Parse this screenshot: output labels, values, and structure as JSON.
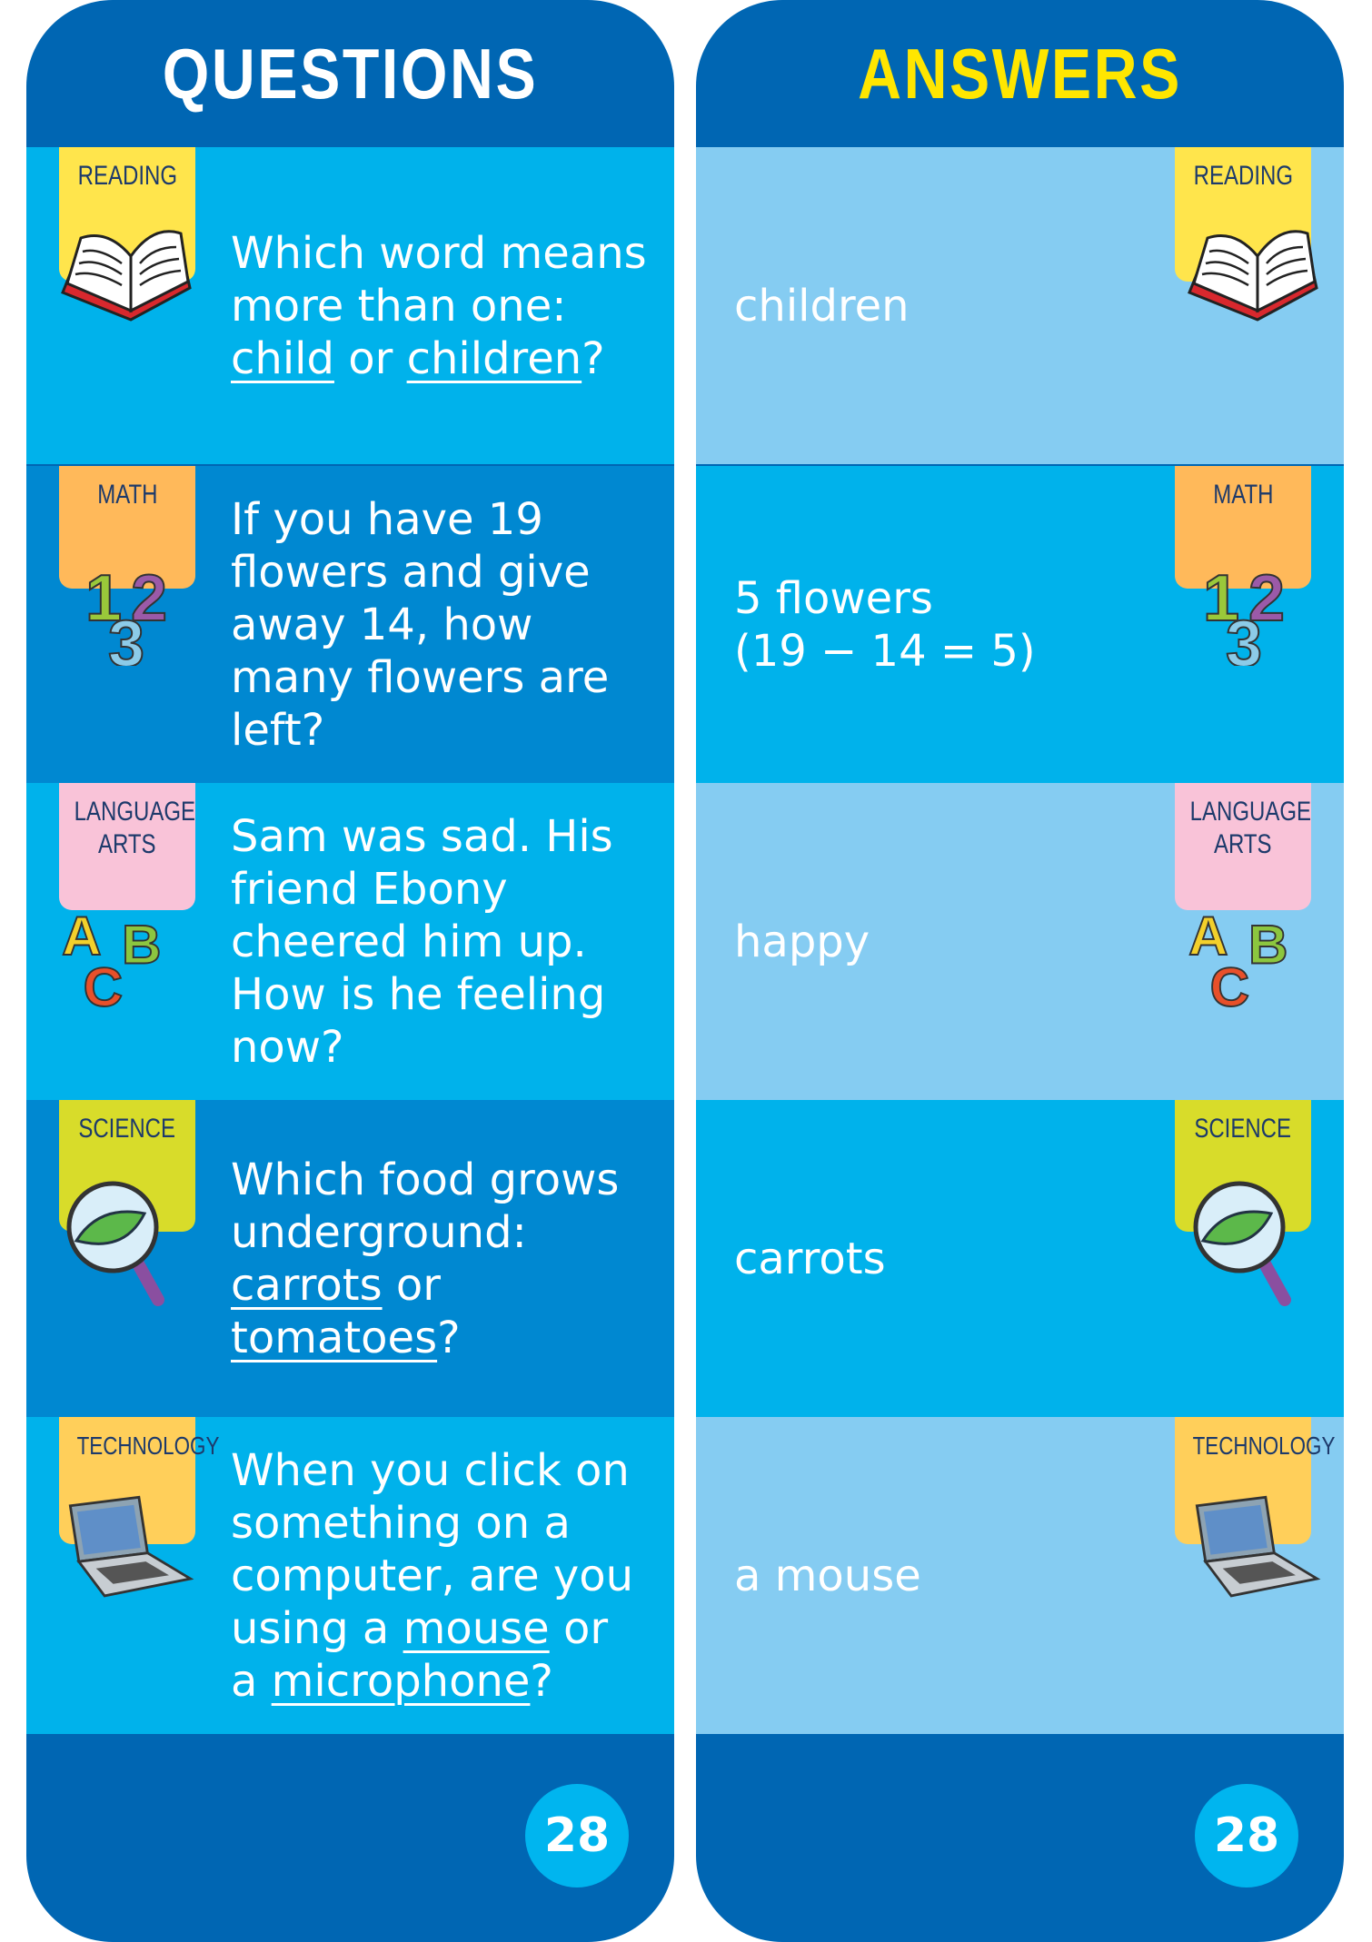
{
  "questions": {
    "title": "QUESTIONS",
    "page": "28",
    "items": [
      {
        "category": "READING",
        "parts": [
          "Which word means more than one: ",
          "child",
          " or ",
          "children",
          "?"
        ]
      },
      {
        "category": "MATH",
        "text": "If you have 19 flowers and give away 14, how many flowers are left?"
      },
      {
        "category_line1": "LANGUAGE",
        "category_line2": "ARTS",
        "text": "Sam was sad. His friend Ebony cheered him up. How is he feeling now?"
      },
      {
        "category": "SCIENCE",
        "parts": [
          "Which food grows underground: ",
          "carrots",
          " or ",
          "tomatoes",
          "?"
        ]
      },
      {
        "category": "TECHNOLOGY",
        "parts": [
          "When you click on something on a computer, are you using a ",
          "mouse",
          " or a ",
          "microphone",
          "?"
        ]
      }
    ]
  },
  "answers": {
    "title": "ANSWERS",
    "page": "28",
    "items": [
      {
        "category": "READING",
        "text": "children"
      },
      {
        "category": "MATH",
        "line1": "5 flowers",
        "line2": "(19 − 14 = 5)"
      },
      {
        "category_line1": "LANGUAGE",
        "category_line2": "ARTS",
        "text": "happy"
      },
      {
        "category": "SCIENCE",
        "text": "carrots"
      },
      {
        "category": "TECHNOLOGY",
        "text": "a mouse"
      }
    ]
  },
  "colors": {
    "header": "#0066b3",
    "row_cyan": "#00b2eb",
    "row_blue": "#0088d1",
    "row_pale": "#85ccf2",
    "answers_title": "#ffe600",
    "reading_tab": "#ffe54c",
    "math_tab": "#ffb95a",
    "language_tab": "#f9c3d8",
    "science_tab": "#d8dc2a",
    "technology_tab": "#ffcf5a"
  }
}
